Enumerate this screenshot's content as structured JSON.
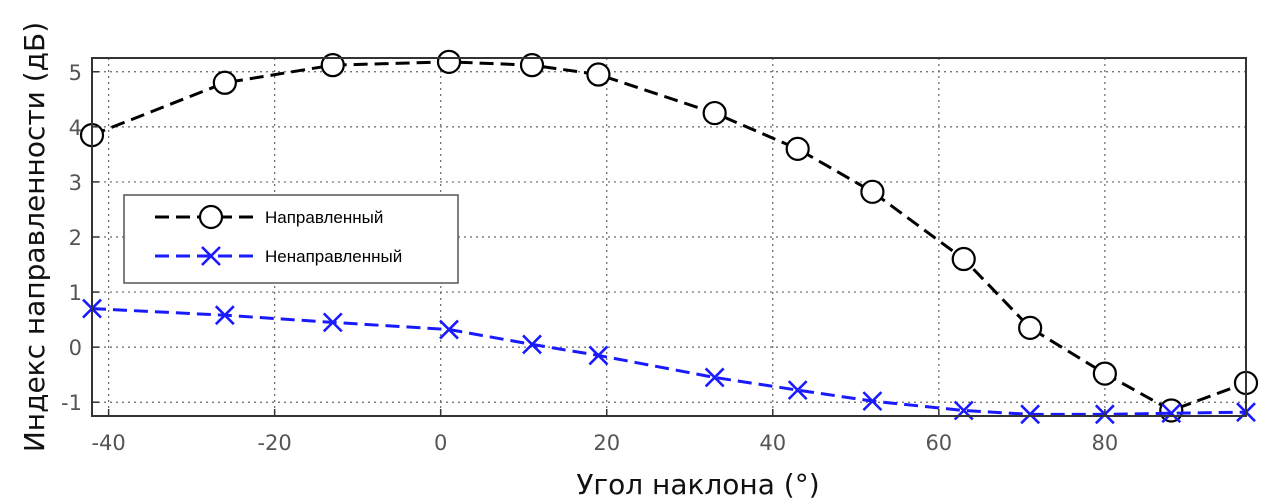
{
  "chart_data": {
    "type": "line",
    "xlabel": "Угол наклона (°)",
    "ylabel": "Индекс направленности (дБ)",
    "xlim": [
      -42,
      97
    ],
    "ylim": [
      -1.25,
      5.25
    ],
    "x_ticks": [
      -40,
      -20,
      0,
      20,
      40,
      60,
      80
    ],
    "y_ticks": [
      -1,
      0,
      1,
      2,
      3,
      4,
      5
    ],
    "grid": true,
    "grid_style": "dotted",
    "legend_position": "left",
    "series": [
      {
        "name": "Направленный",
        "color": "#000000",
        "line_style": "dashed",
        "marker": "circle",
        "x": [
          -42,
          -26,
          -13,
          1,
          11,
          19,
          33,
          43,
          52,
          63,
          71,
          80,
          88,
          97
        ],
        "y": [
          3.85,
          4.8,
          5.12,
          5.18,
          5.12,
          4.95,
          4.25,
          3.6,
          2.82,
          1.6,
          0.35,
          -0.48,
          -1.15,
          -0.65
        ]
      },
      {
        "name": "Ненаправленный",
        "color": "#1a1aff",
        "line_style": "dashed",
        "marker": "x",
        "x": [
          -42,
          -26,
          -13,
          1,
          11,
          19,
          33,
          43,
          52,
          63,
          71,
          80,
          88,
          97
        ],
        "y": [
          0.7,
          0.58,
          0.45,
          0.32,
          0.05,
          -0.15,
          -0.55,
          -0.78,
          -0.98,
          -1.15,
          -1.22,
          -1.22,
          -1.2,
          -1.18
        ]
      }
    ]
  }
}
